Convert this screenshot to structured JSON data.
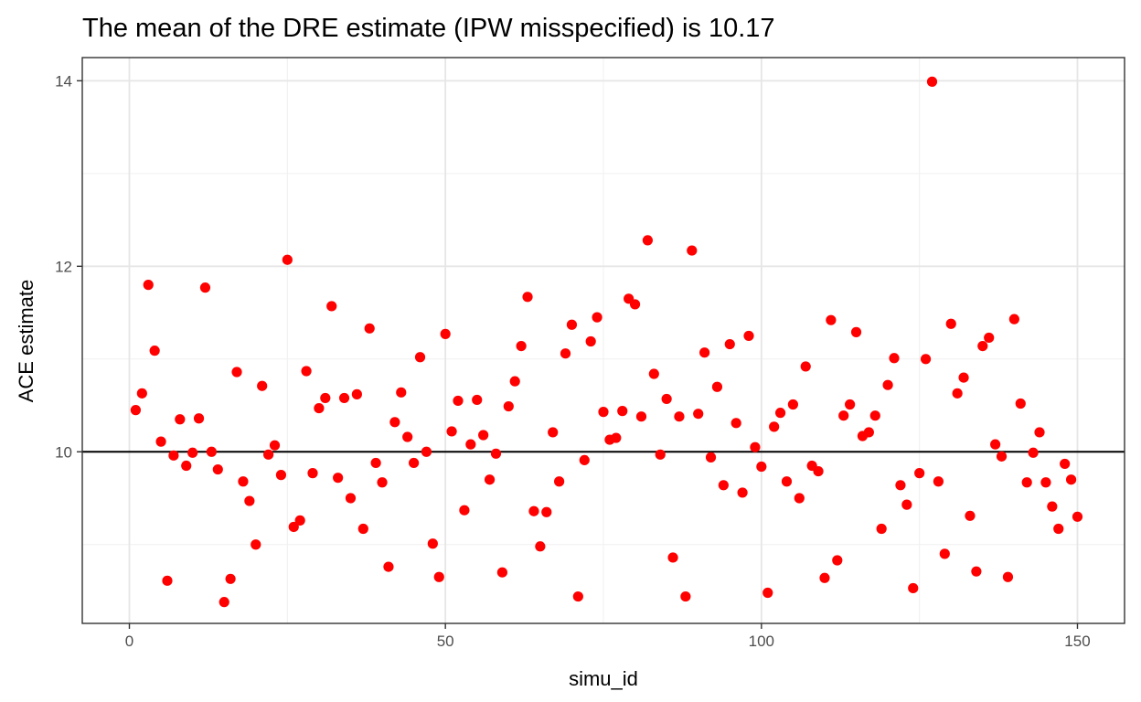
{
  "chart_data": {
    "type": "scatter",
    "title": "The mean of the DRE estimate (IPW misspecified) is  10.17",
    "xlabel": "simu_id",
    "ylabel": "ACE estimate",
    "xlim": [
      -7.45,
      157.45
    ],
    "ylim": [
      8.15,
      14.25
    ],
    "x_ticks": [
      0,
      50,
      100,
      150
    ],
    "x_tick_labels": [
      "0",
      "50",
      "100",
      "150"
    ],
    "y_ticks": [
      10,
      12,
      14
    ],
    "y_tick_labels": [
      "10",
      "12",
      "14"
    ],
    "reference_line": {
      "y": 10,
      "color": "#000000"
    },
    "point_color": "#ff0000",
    "grid": true,
    "theme": "bw",
    "series": [
      {
        "name": "ACE estimate",
        "x": [
          1,
          2,
          3,
          4,
          5,
          6,
          7,
          8,
          9,
          10,
          11,
          12,
          13,
          14,
          15,
          16,
          17,
          18,
          19,
          20,
          21,
          22,
          23,
          24,
          25,
          26,
          27,
          28,
          29,
          30,
          31,
          32,
          33,
          34,
          35,
          36,
          37,
          38,
          39,
          40,
          41,
          42,
          43,
          44,
          45,
          46,
          47,
          48,
          49,
          50,
          51,
          52,
          53,
          54,
          55,
          56,
          57,
          58,
          59,
          60,
          61,
          62,
          63,
          64,
          65,
          66,
          67,
          68,
          69,
          70,
          71,
          72,
          73,
          74,
          75,
          76,
          77,
          78,
          79,
          80,
          81,
          82,
          83,
          84,
          85,
          86,
          87,
          88,
          89,
          90,
          91,
          92,
          93,
          94,
          95,
          96,
          97,
          98,
          99,
          100,
          101,
          102,
          103,
          104,
          105,
          106,
          107,
          108,
          109,
          110,
          111,
          112,
          113,
          114,
          115,
          116,
          117,
          118,
          119,
          120,
          121,
          122,
          123,
          124,
          125,
          126,
          127,
          128,
          129,
          130,
          131,
          132,
          133,
          134,
          135,
          136,
          137,
          138,
          139,
          140,
          141,
          142,
          143,
          144,
          145,
          146,
          147,
          148,
          149,
          150
        ],
        "y": [
          10.45,
          10.63,
          11.8,
          11.09,
          10.11,
          8.61,
          9.96,
          10.35,
          9.85,
          9.99,
          10.36,
          11.77,
          10,
          9.81,
          8.38,
          8.63,
          10.86,
          9.68,
          9.47,
          9.0,
          10.71,
          9.97,
          10.07,
          9.75,
          12.07,
          9.19,
          9.26,
          10.87,
          9.77,
          10.47,
          10.58,
          11.57,
          9.72,
          10.58,
          9.5,
          10.62,
          9.17,
          11.33,
          9.88,
          9.67,
          8.76,
          10.32,
          10.64,
          10.16,
          9.88,
          11.02,
          10.0,
          9.01,
          8.65,
          11.27,
          10.22,
          10.55,
          9.37,
          10.08,
          10.56,
          10.18,
          9.7,
          9.98,
          8.7,
          10.49,
          10.76,
          11.14,
          11.67,
          9.36,
          8.98,
          9.35,
          10.21,
          9.68,
          11.06,
          11.37,
          8.44,
          9.91,
          11.19,
          11.45,
          10.43,
          10.13,
          10.15,
          10.44,
          11.65,
          11.59,
          10.38,
          12.28,
          10.84,
          9.97,
          10.57,
          8.86,
          10.38,
          8.44,
          12.17,
          10.41,
          11.07,
          9.94,
          10.7,
          9.64,
          11.16,
          10.31,
          9.56,
          11.25,
          10.05,
          9.84,
          8.48,
          10.27,
          10.42,
          9.68,
          10.51,
          9.5,
          10.92,
          9.85,
          9.79,
          8.64,
          11.42,
          8.83,
          10.39,
          10.51,
          11.29,
          10.17,
          10.21,
          10.39,
          9.17,
          10.72,
          11.01,
          9.64,
          9.43,
          8.53,
          9.77,
          11.0,
          13.99,
          9.68,
          8.9,
          11.38,
          10.63,
          10.8,
          9.31,
          8.71,
          11.14,
          11.23,
          10.08,
          9.95,
          8.65,
          11.43,
          10.52,
          9.67,
          9.99,
          10.21,
          9.67,
          9.41,
          9.17,
          9.87,
          9.7,
          9.3
        ]
      }
    ]
  }
}
